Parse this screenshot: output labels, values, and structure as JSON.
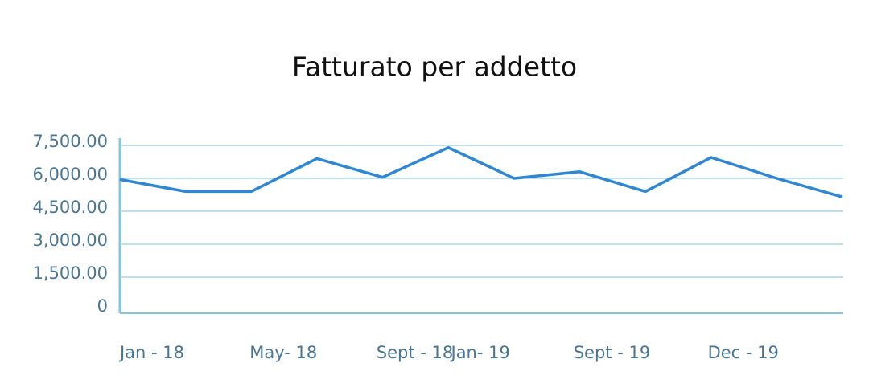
{
  "chart_data": {
    "type": "line",
    "title": "Fatturato per addetto",
    "categories": [
      "Jan - 18",
      null,
      "May- 18",
      null,
      "Sept - 18",
      "Jan- 19",
      null,
      "Sept - 19",
      null,
      "Dec - 19",
      null,
      null
    ],
    "series": [
      {
        "color": "#2f86d3",
        "values": [
          5950,
          5400,
          5400,
          6900,
          6050,
          7400,
          6000,
          6300,
          5400,
          6950,
          6000,
          5150
        ]
      }
    ],
    "ylim": [
      0,
      7500
    ],
    "yticks": [
      0,
      {
        "value": 1500,
        "label": "1,500.00"
      },
      {
        "value": 3000,
        "label": "3,000.00"
      },
      {
        "value": 4500,
        "label": "4,500.00"
      },
      {
        "value": 6000,
        "label": "6,000.00"
      },
      {
        "value": 7500,
        "label": "7,500.00"
      }
    ],
    "grid": true
  }
}
